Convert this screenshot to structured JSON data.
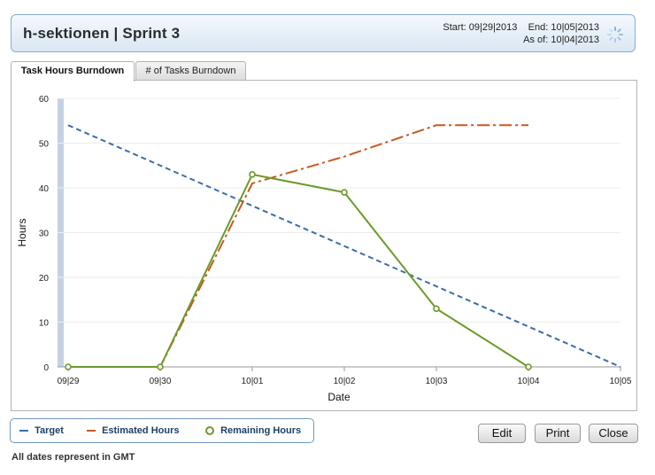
{
  "header": {
    "title": "h-sektionen | Sprint 3",
    "start_label": "Start:",
    "start_value": "09|29|2013",
    "end_label": "End:",
    "end_value": "10|05|2013",
    "asof_label": "As of:",
    "asof_value": "10|04|2013"
  },
  "tabs": [
    {
      "label": "Task Hours Burndown",
      "active": true
    },
    {
      "label": "# of Tasks Burndown",
      "active": false
    }
  ],
  "legend": {
    "target": "Target",
    "estimated": "Estimated Hours",
    "remaining": "Remaining Hours"
  },
  "buttons": {
    "edit": "Edit",
    "print": "Print",
    "close": "Close"
  },
  "footnote": "All dates represent in GMT",
  "colors": {
    "target": "#3a6ea8",
    "estimated": "#c8581e",
    "remaining": "#6b9a2a",
    "today_bar": "#c3d2e2"
  },
  "chart_data": {
    "type": "line",
    "xlabel": "Date",
    "ylabel": "Hours",
    "categories": [
      "09|29",
      "09|30",
      "10|01",
      "10|02",
      "10|03",
      "10|04",
      "10|05"
    ],
    "ylim": [
      0,
      60
    ],
    "yticks": [
      0,
      10,
      20,
      30,
      40,
      50,
      60
    ],
    "grid": true,
    "series": [
      {
        "name": "Target",
        "style": "dashed",
        "values": [
          54,
          45,
          36,
          27,
          18,
          9,
          0
        ]
      },
      {
        "name": "Estimated Hours",
        "style": "dash-dot",
        "values": [
          0,
          0,
          41,
          47,
          54,
          54,
          null
        ]
      },
      {
        "name": "Remaining Hours",
        "style": "solid-markers",
        "values": [
          0,
          0,
          43,
          39,
          13,
          0,
          null
        ]
      }
    ]
  }
}
